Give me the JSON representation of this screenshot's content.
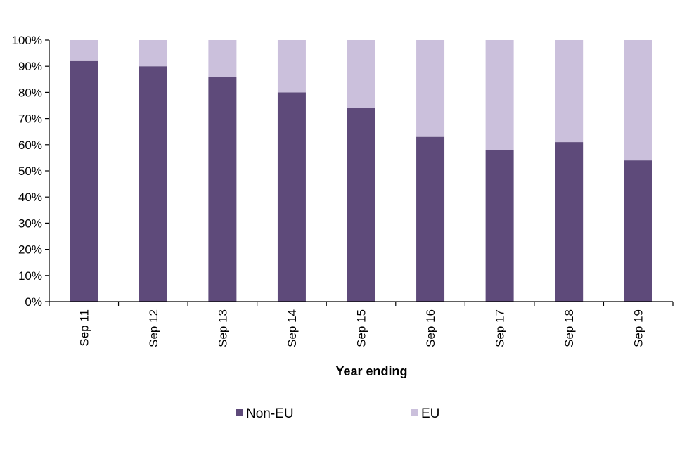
{
  "chart_data": {
    "type": "bar",
    "stacked": true,
    "normalized_percent": true,
    "categories": [
      "Sep 11",
      "Sep 12",
      "Sep 13",
      "Sep 14",
      "Sep 15",
      "Sep 16",
      "Sep 17",
      "Sep 18",
      "Sep 19"
    ],
    "series": [
      {
        "name": "Non-EU",
        "color": "#5e4a7a",
        "values": [
          92,
          90,
          86,
          80,
          74,
          63,
          58,
          61,
          54
        ]
      },
      {
        "name": "EU",
        "color": "#cbc0dc",
        "values": [
          8,
          10,
          14,
          20,
          26,
          37,
          42,
          39,
          46
        ]
      }
    ],
    "xlabel": "Year ending",
    "ylabel": "",
    "ylim": [
      0,
      100
    ],
    "yticks": [
      "0%",
      "10%",
      "20%",
      "30%",
      "40%",
      "50%",
      "60%",
      "70%",
      "80%",
      "90%",
      "100%"
    ],
    "grid": false,
    "legend_position": "bottom"
  }
}
